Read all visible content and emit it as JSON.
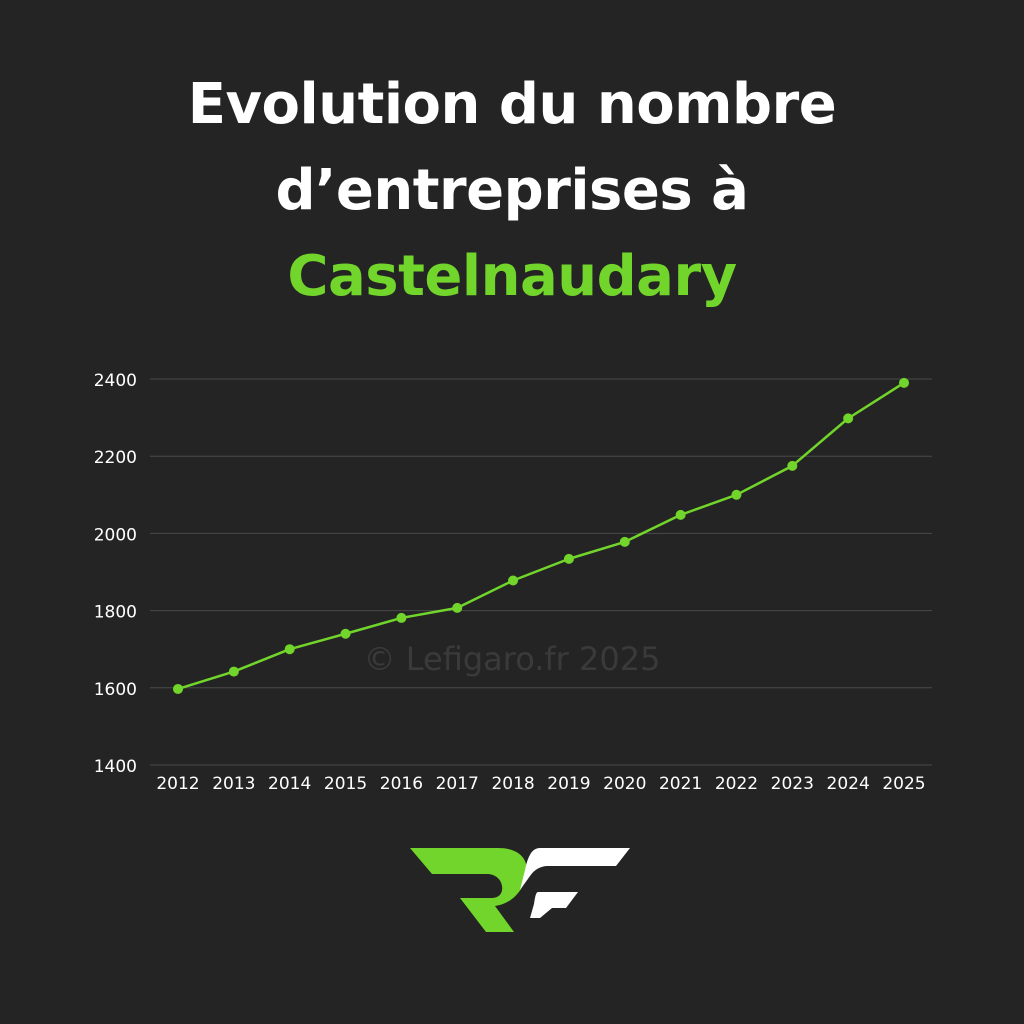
{
  "title": {
    "line1": "Evolution du nombre",
    "line2": "d’entreprises à",
    "city": "Castelnaudary"
  },
  "watermark": "© Lefigaro.fr 2025",
  "colors": {
    "background": "#242424",
    "accent": "#72d52b",
    "text": "#ffffff",
    "grid": "#4a4a4a"
  },
  "chart_data": {
    "type": "line",
    "title": "Evolution du nombre d’entreprises à Castelnaudary",
    "xlabel": "",
    "ylabel": "",
    "x": [
      "2012",
      "2013",
      "2014",
      "2015",
      "2016",
      "2017",
      "2018",
      "2019",
      "2020",
      "2021",
      "2022",
      "2023",
      "2024",
      "2025"
    ],
    "series": [
      {
        "values": [
          1597,
          1642,
          1700,
          1740,
          1781,
          1807,
          1878,
          1934,
          1978,
          2048,
          2100,
          2175,
          2298,
          2390
        ]
      }
    ],
    "ylim": [
      1400,
      2400
    ],
    "yticks": [
      1400,
      1600,
      1800,
      2000,
      2200,
      2400
    ],
    "grid": true,
    "legend": "none",
    "markers": true
  }
}
